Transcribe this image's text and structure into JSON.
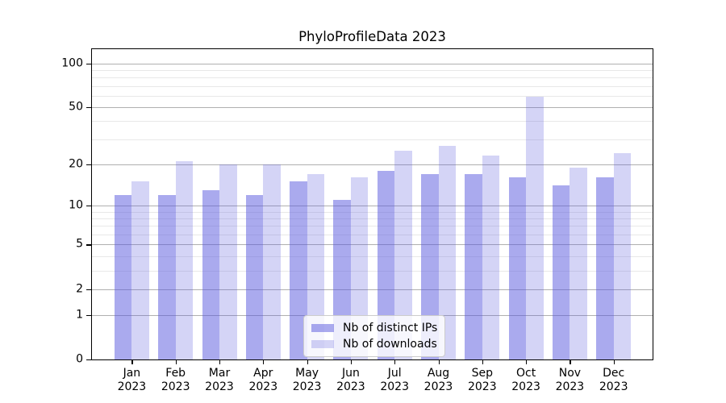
{
  "title": "PhyloProfileData 2023",
  "colors": {
    "bar_base": "#5555dd",
    "ips_fill": "rgba(85,85,221,0.5)",
    "downloads_fill": "rgba(85,85,221,0.25)",
    "major_grid": "#b0b0b0",
    "minor_grid": "#e8e8e8",
    "axis": "#000000",
    "legend_border": "#cccccc",
    "legend_bg": "rgba(255,255,255,0.8)"
  },
  "chart_data": {
    "type": "bar",
    "title": "PhyloProfileData 2023",
    "scale": "log1p",
    "grid": true,
    "legend_position": "lower center",
    "year": "2023",
    "categories": [
      "Jan",
      "Feb",
      "Mar",
      "Apr",
      "May",
      "Jun",
      "Jul",
      "Aug",
      "Sep",
      "Oct",
      "Nov",
      "Dec"
    ],
    "series": [
      {
        "name": "Nb of distinct IPs",
        "color": "rgba(85,85,221,0.5)",
        "values": [
          12,
          12,
          13,
          12,
          15,
          11,
          18,
          17,
          17,
          16,
          14,
          16
        ]
      },
      {
        "name": "Nb of downloads",
        "color": "rgba(85,85,221,0.25)",
        "values": [
          15,
          21,
          20,
          20,
          17,
          16,
          25,
          27,
          23,
          59,
          19,
          24
        ]
      }
    ],
    "xlabel": "",
    "ylabel": "",
    "ylim": [
      0,
      125
    ],
    "yticks": [
      100,
      50,
      20,
      10,
      5,
      2,
      1,
      0
    ],
    "major_gridlines": [
      1,
      2,
      5,
      10,
      20,
      50,
      100
    ],
    "minor_gridlines": [
      3,
      4,
      6,
      7,
      8,
      9,
      30,
      40,
      60,
      70,
      80,
      90
    ]
  }
}
